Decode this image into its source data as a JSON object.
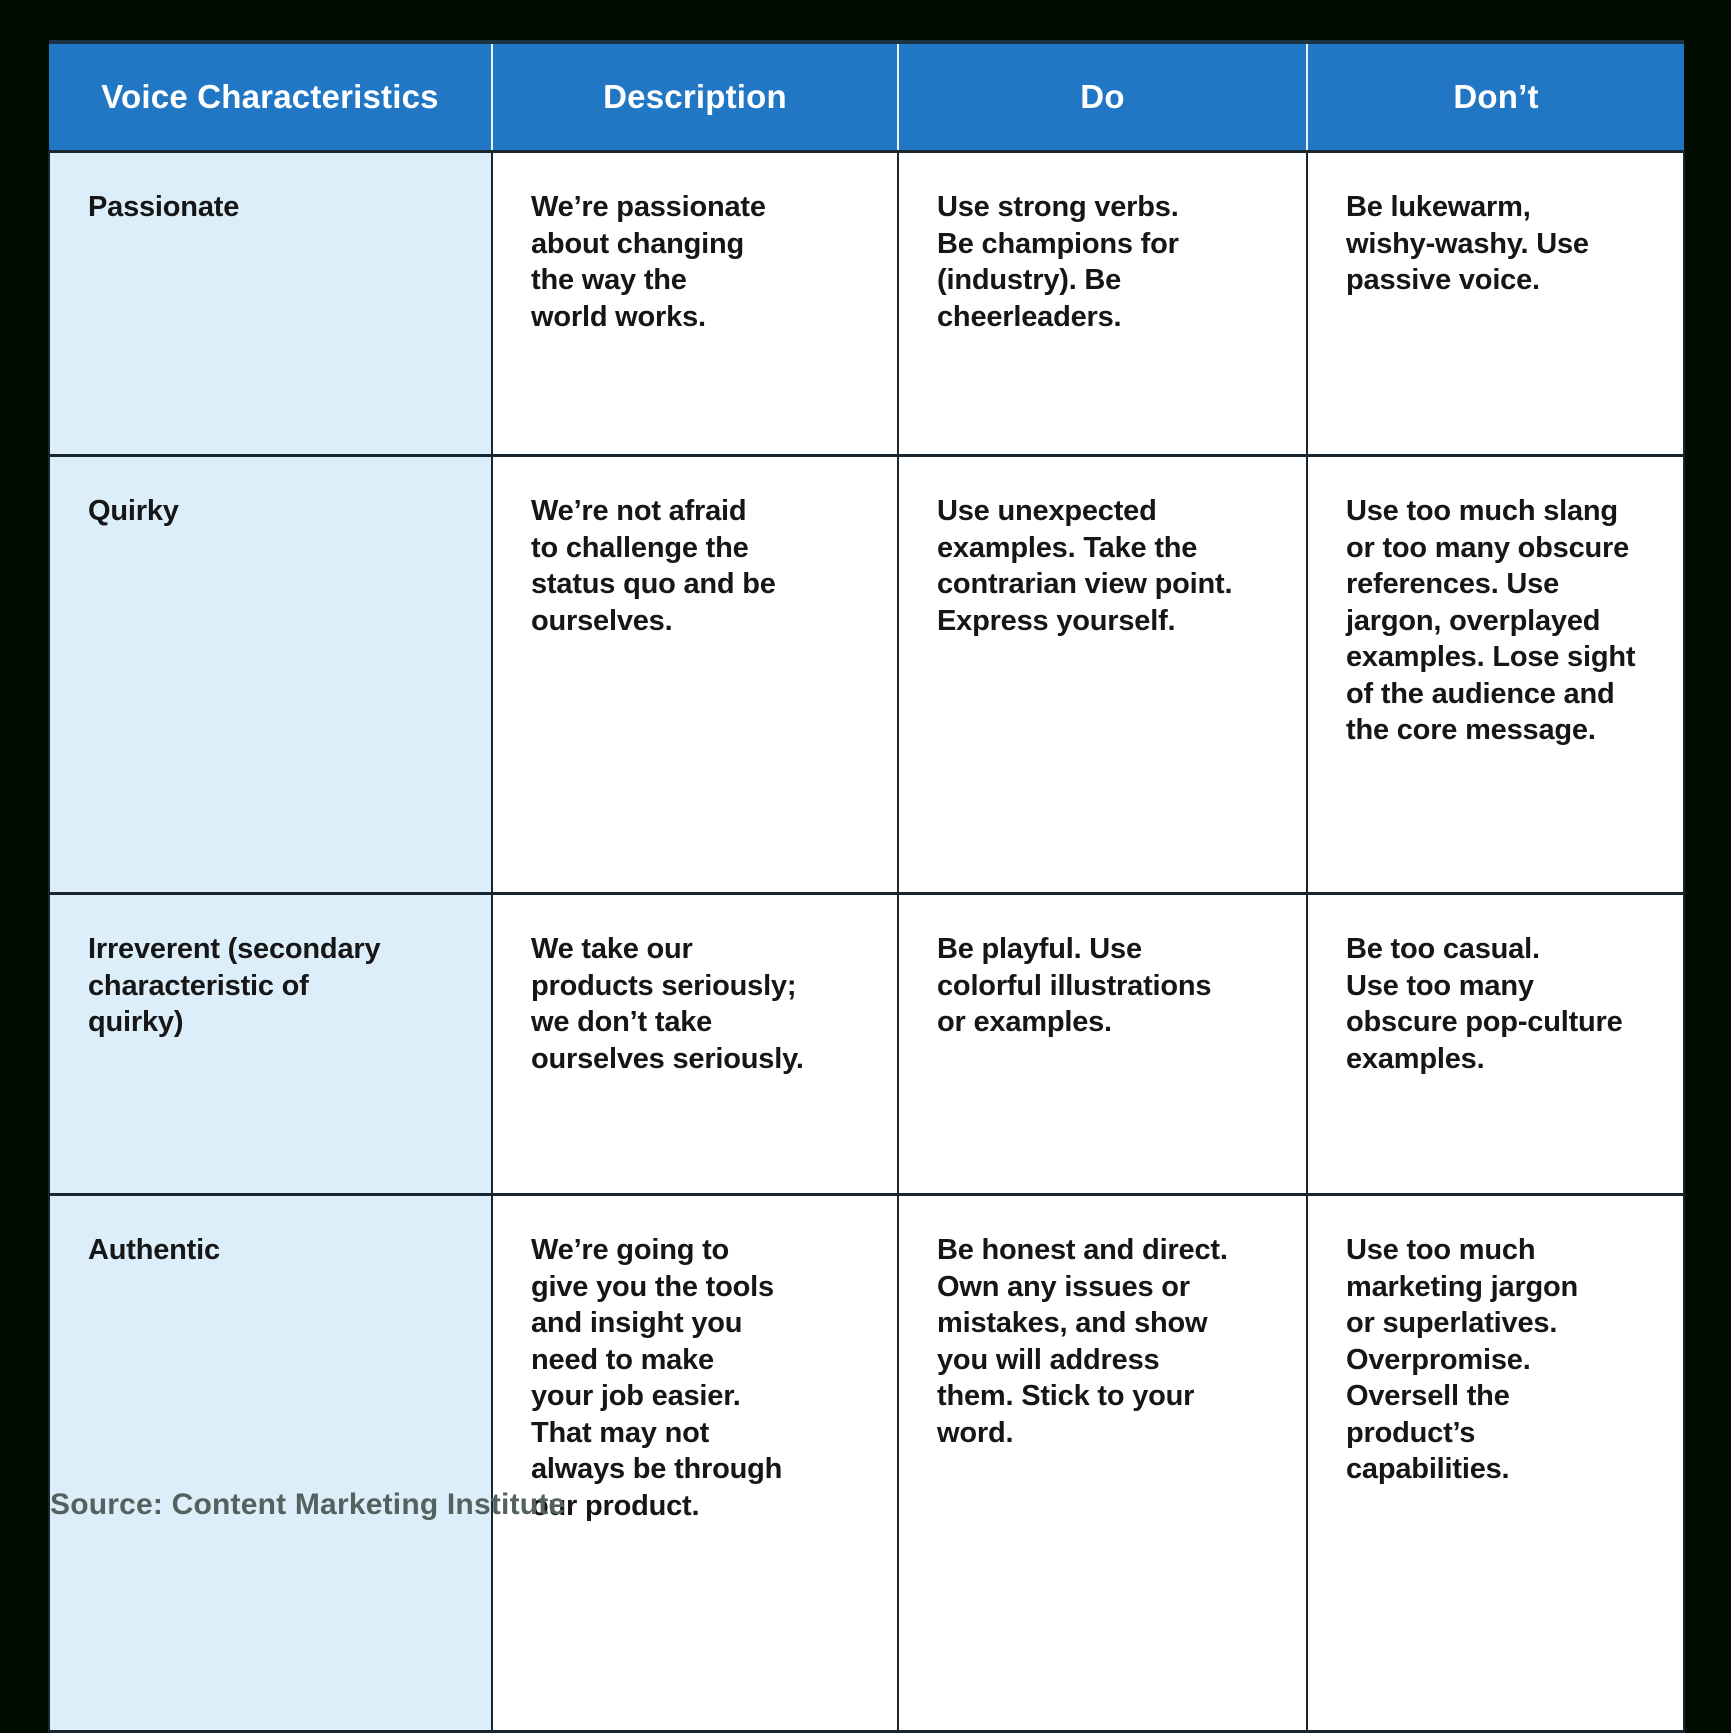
{
  "chart_data": {
    "type": "table",
    "title": "",
    "columns": [
      "Voice Characteristics",
      "Description",
      "Do",
      "Don’t"
    ],
    "rows": [
      [
        "Passionate",
        "We’re passionate\nabout changing\nthe way the\nworld works.",
        "Use strong verbs.\nBe champions for\n(industry). Be\ncheerleaders.",
        "Be lukewarm,\nwishy-washy. Use\npassive voice."
      ],
      [
        "Quirky",
        "We’re not afraid\nto challenge the\nstatus quo and be\nourselves.",
        "Use unexpected\nexamples. Take the\ncontrarian view point.\nExpress yourself.",
        "Use too much slang\nor too many obscure\nreferences. Use\njargon, overplayed\nexamples. Lose sight\nof the audience and\nthe core message."
      ],
      [
        "Irreverent (secondary\ncharacteristic of\nquirky)",
        "We take our\nproducts seriously;\nwe don’t take\nourselves seriously.",
        "Be playful. Use\ncolorful illustrations\nor examples.",
        "Be too casual.\nUse too many\nobscure pop-culture\nexamples."
      ],
      [
        "Authentic",
        "We’re going to\ngive you the tools\nand insight you\nneed to make\nyour job easier.\nThat may not\nalways be through\nour product.",
        "Be honest and direct.\nOwn any issues or\nmistakes, and show\nyou will address\nthem. Stick to your\nword.",
        "Use too much\nmarketing jargon\nor superlatives.\nOverpromise.\nOversell the\nproduct’s\ncapabilities."
      ]
    ],
    "layout": {
      "header_position": "top",
      "row_label_column": 0
    }
  },
  "footer": {
    "source": "Source: Content Marketing Institute"
  },
  "colors": {
    "page_background": "#020d02",
    "header_background": "#2177c4",
    "header_text": "#ffffff",
    "row_label_background": "#ddeefb",
    "cell_background": "#ffffff",
    "grid_line": "#1a262e",
    "body_text": "#161616",
    "source_text": "#53625f"
  }
}
